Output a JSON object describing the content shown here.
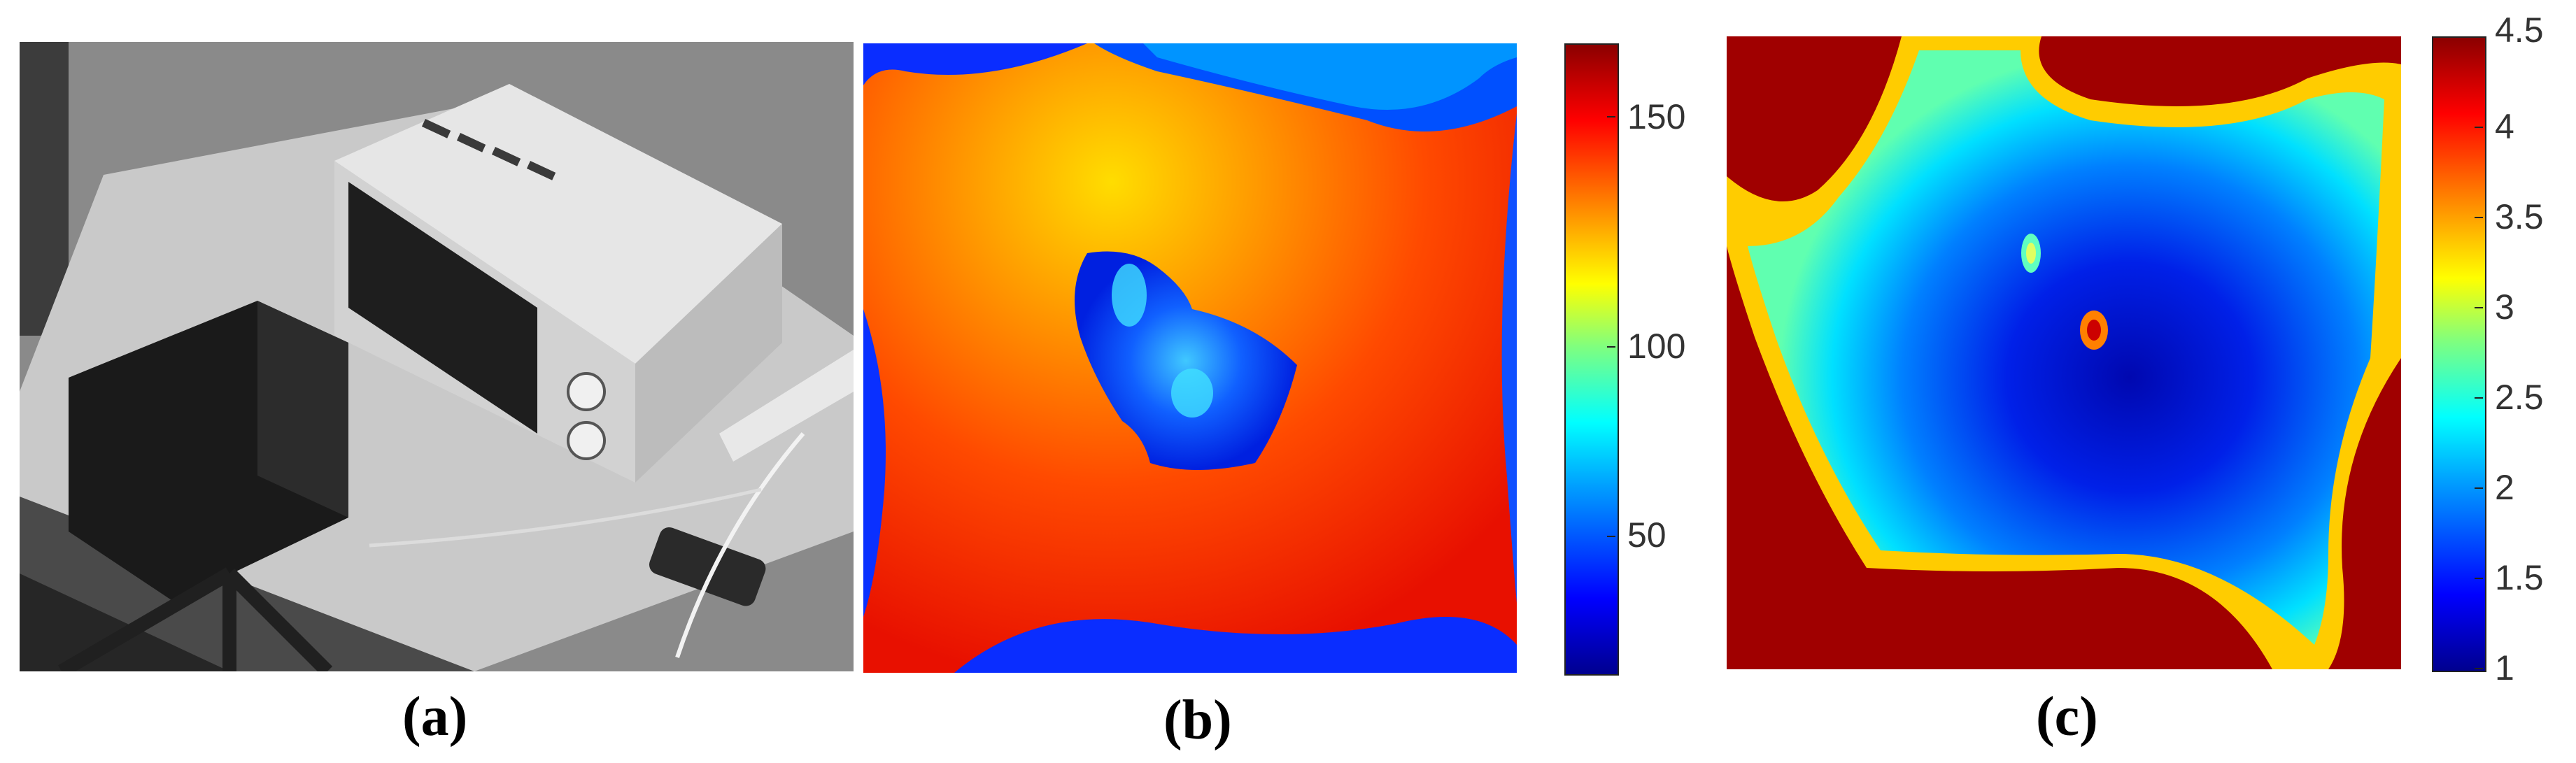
{
  "panels": {
    "a": {
      "caption": "(a)"
    },
    "b": {
      "caption": "(b)",
      "colorbar_ticks": [
        "150",
        "100",
        "50"
      ]
    },
    "c": {
      "caption": "(c)",
      "colorbar_ticks": [
        "4.5",
        "4",
        "3.5",
        "3",
        "2.5",
        "2",
        "1.5",
        "1"
      ]
    }
  },
  "colormap": "jet",
  "colors": {
    "dark_blue": "#00008f",
    "blue": "#0000ff",
    "cyan": "#00ffff",
    "yellow": "#ffff00",
    "orange": "#ff8000",
    "red": "#ff0000",
    "dark_red": "#8b0000"
  }
}
